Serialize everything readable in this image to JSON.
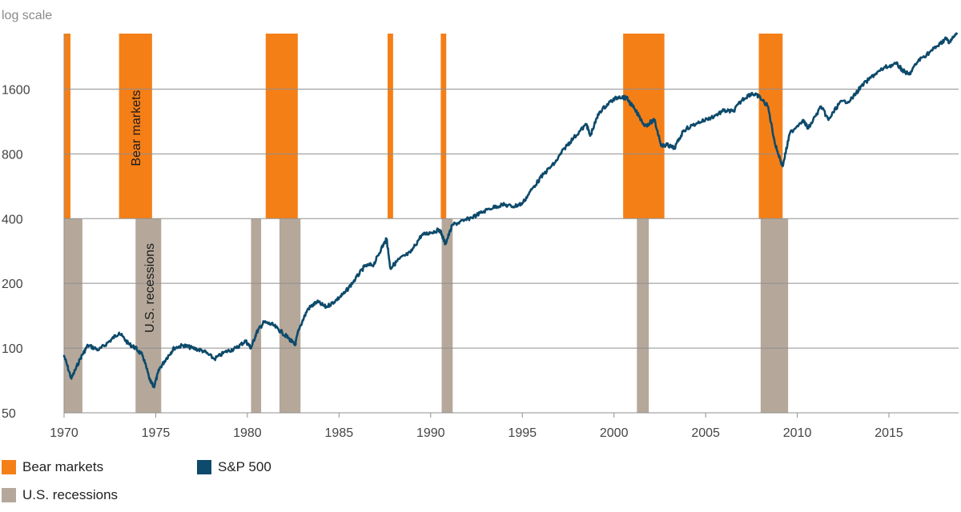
{
  "chart_data": {
    "type": "line",
    "y_scale": "log",
    "y_axis_note": "log scale",
    "ylim": [
      50,
      2900
    ],
    "xlim": [
      1970,
      2018.8
    ],
    "y_ticks": [
      "50",
      "100",
      "200",
      "400",
      "800",
      "1600"
    ],
    "x_ticks": [
      "1970",
      "1975",
      "1980",
      "1985",
      "1990",
      "1995",
      "2000",
      "2005",
      "2010",
      "2015"
    ],
    "grid": true,
    "legend_position": "bottom-left",
    "band_labels": {
      "bear_markets": "Bear markets",
      "recessions": "U.S. recessions"
    },
    "legend": [
      {
        "label": "Bear markets",
        "color": "#f57f17",
        "kind": "bear"
      },
      {
        "label": "U.S. recessions",
        "color": "#b5a89a",
        "kind": "recession"
      },
      {
        "label": "S&P 500",
        "color": "#0d4a6b",
        "kind": "line"
      }
    ],
    "bear_markets": [
      [
        1970.0,
        1970.35
      ],
      [
        1973.0,
        1974.8
      ],
      [
        1981.0,
        1982.75
      ],
      [
        1987.65,
        1987.95
      ],
      [
        1990.55,
        1990.85
      ],
      [
        2000.5,
        2002.75
      ],
      [
        2007.9,
        2009.2
      ]
    ],
    "recessions": [
      [
        1970.0,
        1971.0
      ],
      [
        1973.9,
        1975.3
      ],
      [
        1980.2,
        1980.75
      ],
      [
        1981.75,
        1982.9
      ],
      [
        1990.6,
        1991.2
      ],
      [
        2001.25,
        2001.9
      ],
      [
        2008.0,
        2009.5
      ]
    ],
    "series": [
      {
        "name": "S&P 500",
        "color": "#0d4a6b",
        "points": [
          [
            1970.0,
            92
          ],
          [
            1970.4,
            72
          ],
          [
            1970.9,
            90
          ],
          [
            1971.3,
            103
          ],
          [
            1971.9,
            98
          ],
          [
            1972.5,
            108
          ],
          [
            1973.0,
            118
          ],
          [
            1973.5,
            105
          ],
          [
            1973.9,
            100
          ],
          [
            1974.3,
            92
          ],
          [
            1974.7,
            70
          ],
          [
            1974.9,
            66
          ],
          [
            1975.2,
            80
          ],
          [
            1975.6,
            90
          ],
          [
            1976.0,
            100
          ],
          [
            1976.5,
            103
          ],
          [
            1977.0,
            100
          ],
          [
            1977.6,
            97
          ],
          [
            1978.2,
            89
          ],
          [
            1978.8,
            96
          ],
          [
            1979.4,
            100
          ],
          [
            1979.9,
            108
          ],
          [
            1980.2,
            100
          ],
          [
            1980.5,
            118
          ],
          [
            1980.9,
            132
          ],
          [
            1981.4,
            128
          ],
          [
            1981.9,
            118
          ],
          [
            1982.3,
            110
          ],
          [
            1982.6,
            103
          ],
          [
            1982.8,
            122
          ],
          [
            1983.3,
            152
          ],
          [
            1983.8,
            164
          ],
          [
            1984.3,
            155
          ],
          [
            1984.8,
            166
          ],
          [
            1985.3,
            180
          ],
          [
            1985.9,
            210
          ],
          [
            1986.4,
            240
          ],
          [
            1986.9,
            245
          ],
          [
            1987.3,
            290
          ],
          [
            1987.6,
            322
          ],
          [
            1987.8,
            235
          ],
          [
            1988.3,
            260
          ],
          [
            1988.9,
            278
          ],
          [
            1989.5,
            335
          ],
          [
            1990.0,
            345
          ],
          [
            1990.5,
            355
          ],
          [
            1990.8,
            305
          ],
          [
            1991.2,
            375
          ],
          [
            1991.8,
            390
          ],
          [
            1992.5,
            415
          ],
          [
            1993.2,
            445
          ],
          [
            1993.9,
            465
          ],
          [
            1994.5,
            455
          ],
          [
            1995.0,
            470
          ],
          [
            1995.6,
            560
          ],
          [
            1996.2,
            650
          ],
          [
            1996.8,
            730
          ],
          [
            1997.3,
            850
          ],
          [
            1997.8,
            950
          ],
          [
            1998.5,
            1100
          ],
          [
            1998.7,
            970
          ],
          [
            1999.2,
            1250
          ],
          [
            1999.8,
            1400
          ],
          [
            2000.3,
            1480
          ],
          [
            2000.7,
            1450
          ],
          [
            2001.1,
            1300
          ],
          [
            2001.7,
            1080
          ],
          [
            2002.2,
            1150
          ],
          [
            2002.6,
            870
          ],
          [
            2002.9,
            880
          ],
          [
            2003.3,
            850
          ],
          [
            2003.8,
            1030
          ],
          [
            2004.5,
            1110
          ],
          [
            2005.3,
            1180
          ],
          [
            2006.0,
            1270
          ],
          [
            2006.5,
            1260
          ],
          [
            2007.0,
            1430
          ],
          [
            2007.5,
            1530
          ],
          [
            2007.9,
            1480
          ],
          [
            2008.4,
            1330
          ],
          [
            2008.8,
            880
          ],
          [
            2009.2,
            700
          ],
          [
            2009.6,
            1000
          ],
          [
            2010.3,
            1150
          ],
          [
            2010.6,
            1050
          ],
          [
            2011.3,
            1330
          ],
          [
            2011.7,
            1150
          ],
          [
            2012.3,
            1380
          ],
          [
            2012.9,
            1420
          ],
          [
            2013.5,
            1650
          ],
          [
            2014.2,
            1870
          ],
          [
            2014.8,
            2020
          ],
          [
            2015.4,
            2100
          ],
          [
            2015.8,
            1940
          ],
          [
            2016.1,
            1870
          ],
          [
            2016.6,
            2170
          ],
          [
            2017.2,
            2370
          ],
          [
            2017.8,
            2600
          ],
          [
            2018.1,
            2750
          ],
          [
            2018.3,
            2650
          ],
          [
            2018.7,
            2900
          ]
        ]
      }
    ]
  }
}
